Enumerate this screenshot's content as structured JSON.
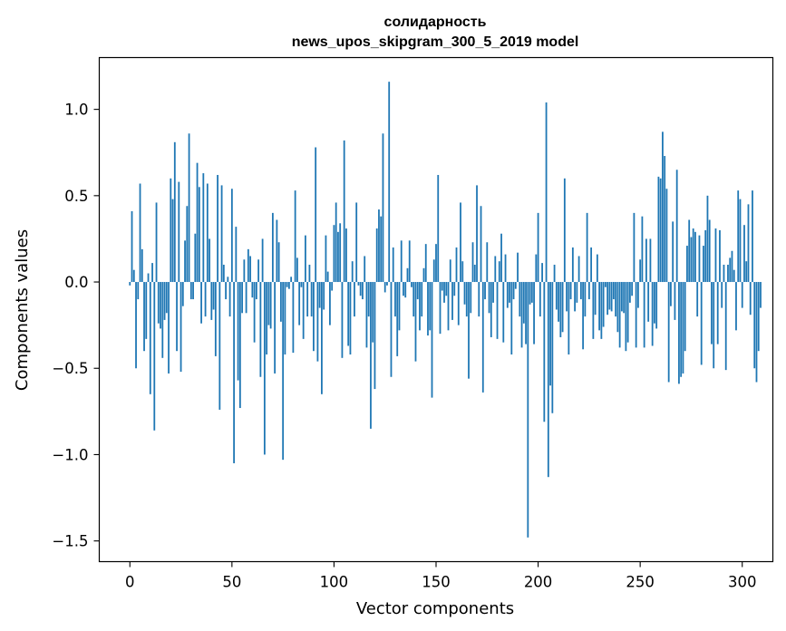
{
  "chart_data": {
    "type": "bar",
    "title_line1": "солидарность",
    "title_line2": "news_upos_skipgram_300_5_2019 model",
    "xlabel": "Vector components",
    "ylabel": "Components values",
    "xlim": [
      -15,
      315
    ],
    "ylim": [
      -1.62,
      1.3
    ],
    "xticks": [
      0,
      50,
      100,
      150,
      200,
      250,
      300
    ],
    "xtick_labels": [
      "0",
      "50",
      "100",
      "150",
      "200",
      "250",
      "300"
    ],
    "yticks": [
      -1.5,
      -1.0,
      -0.5,
      0.0,
      0.5,
      1.0
    ],
    "ytick_labels": [
      "−1.5",
      "−1.0",
      "−0.5",
      "0.0",
      "0.5",
      "1.0"
    ],
    "bar_color": "#1f77b4",
    "values": [
      -0.02,
      0.41,
      0.07,
      -0.5,
      -0.1,
      0.57,
      0.19,
      -0.4,
      -0.33,
      0.05,
      -0.65,
      0.11,
      -0.86,
      0.46,
      -0.24,
      -0.27,
      -0.44,
      -0.22,
      -0.18,
      -0.53,
      0.6,
      0.48,
      0.81,
      -0.4,
      0.58,
      -0.52,
      -0.14,
      0.24,
      0.44,
      0.86,
      -0.1,
      -0.1,
      0.28,
      0.69,
      0.55,
      -0.24,
      0.63,
      -0.2,
      0.57,
      0.25,
      -0.22,
      -0.16,
      -0.43,
      0.62,
      -0.74,
      0.56,
      0.1,
      -0.1,
      0.03,
      -0.2,
      0.54,
      -1.05,
      0.32,
      -0.57,
      -0.73,
      -0.18,
      0.13,
      -0.18,
      0.19,
      0.15,
      -0.09,
      -0.35,
      -0.1,
      0.13,
      -0.55,
      0.25,
      -1.0,
      -0.42,
      -0.25,
      -0.27,
      0.4,
      -0.53,
      0.36,
      0.23,
      -0.23,
      -1.03,
      -0.42,
      -0.03,
      -0.04,
      0.03,
      -0.41,
      0.53,
      0.14,
      -0.25,
      -0.03,
      -0.33,
      0.27,
      -0.2,
      0.1,
      -0.2,
      -0.4,
      0.78,
      -0.46,
      -0.15,
      -0.65,
      -0.16,
      0.27,
      0.06,
      -0.25,
      -0.05,
      0.33,
      0.46,
      0.29,
      0.34,
      -0.44,
      0.82,
      0.31,
      -0.37,
      -0.42,
      0.12,
      -0.2,
      0.46,
      -0.02,
      -0.08,
      -0.1,
      0.15,
      -0.38,
      -0.2,
      -0.85,
      -0.35,
      -0.62,
      0.31,
      0.42,
      0.38,
      0.86,
      -0.06,
      -0.02,
      1.16,
      -0.55,
      0.2,
      -0.2,
      -0.43,
      -0.28,
      0.24,
      -0.08,
      -0.09,
      0.08,
      0.24,
      -0.03,
      -0.2,
      -0.46,
      -0.1,
      -0.28,
      -0.2,
      0.08,
      0.22,
      -0.31,
      -0.28,
      -0.67,
      0.13,
      0.22,
      0.62,
      -0.3,
      -0.05,
      -0.12,
      -0.08,
      -0.28,
      0.13,
      -0.22,
      -0.08,
      0.2,
      -0.25,
      0.46,
      0.12,
      -0.13,
      -0.2,
      -0.56,
      -0.18,
      0.23,
      0.1,
      0.56,
      -0.2,
      0.44,
      -0.64,
      -0.1,
      0.23,
      -0.18,
      -0.32,
      -0.12,
      0.15,
      -0.33,
      0.12,
      0.28,
      -0.35,
      0.16,
      -0.15,
      -0.12,
      -0.42,
      -0.1,
      -0.04,
      0.17,
      -0.2,
      -0.38,
      -0.24,
      -0.36,
      -1.48,
      -0.13,
      -0.12,
      -0.36,
      0.16,
      0.4,
      -0.2,
      0.11,
      -0.81,
      1.04,
      -1.13,
      -0.6,
      -0.76,
      0.1,
      -0.16,
      -0.23,
      -0.32,
      -0.29,
      0.6,
      -0.17,
      -0.42,
      -0.1,
      0.2,
      -0.17,
      -0.12,
      0.15,
      -0.1,
      -0.39,
      -0.2,
      0.4,
      -0.1,
      0.2,
      -0.33,
      -0.19,
      0.16,
      -0.28,
      -0.33,
      -0.26,
      -0.03,
      -0.19,
      -0.16,
      -0.17,
      -0.1,
      -0.2,
      -0.29,
      -0.38,
      -0.17,
      -0.18,
      -0.4,
      -0.35,
      -0.12,
      -0.08,
      0.4,
      -0.38,
      -0.15,
      0.13,
      0.38,
      -0.38,
      0.25,
      -0.23,
      0.25,
      -0.37,
      -0.24,
      -0.27,
      0.61,
      0.6,
      0.87,
      0.73,
      0.54,
      -0.58,
      -0.14,
      0.35,
      -0.22,
      0.65,
      -0.59,
      -0.55,
      -0.53,
      -0.4,
      0.21,
      0.36,
      0.26,
      0.31,
      0.29,
      -0.2,
      0.27,
      -0.48,
      0.21,
      0.3,
      0.5,
      0.36,
      -0.36,
      -0.5,
      0.31,
      -0.36,
      0.3,
      -0.15,
      0.1,
      -0.51,
      0.1,
      0.14,
      0.18,
      0.07,
      -0.28,
      0.53,
      0.48,
      -0.15,
      0.33,
      0.12,
      0.45,
      -0.19,
      0.53,
      -0.5,
      -0.58,
      -0.4,
      -0.15
    ]
  }
}
